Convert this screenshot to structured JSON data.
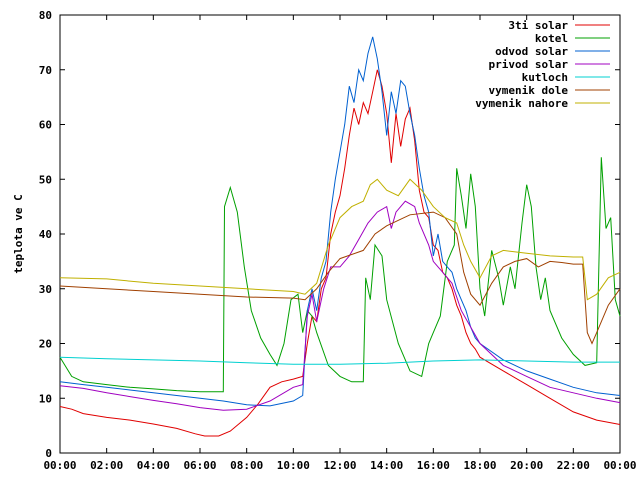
{
  "chart_data": {
    "type": "line",
    "title": "",
    "xlabel": "",
    "ylabel": "teplota ve C",
    "xlim": [
      0,
      24
    ],
    "ylim": [
      0,
      80
    ],
    "grid": false,
    "legend_position": "top-right",
    "x_ticks": [
      "00:00",
      "02:00",
      "04:00",
      "06:00",
      "08:00",
      "10:00",
      "12:00",
      "14:00",
      "16:00",
      "18:00",
      "20:00",
      "22:00",
      "00:00"
    ],
    "y_ticks": [
      "0",
      "10",
      "20",
      "30",
      "40",
      "50",
      "60",
      "70",
      "80"
    ],
    "series": [
      {
        "name": "3ti solar",
        "color": "#e00000",
        "points": [
          [
            0,
            8.5
          ],
          [
            0.5,
            8
          ],
          [
            1,
            7.2
          ],
          [
            2,
            6.5
          ],
          [
            3,
            6
          ],
          [
            4,
            5.3
          ],
          [
            5,
            4.5
          ],
          [
            5.8,
            3.5
          ],
          [
            6.2,
            3.1
          ],
          [
            6.8,
            3.1
          ],
          [
            7.3,
            4
          ],
          [
            8,
            6.5
          ],
          [
            8.5,
            9
          ],
          [
            9,
            12
          ],
          [
            9.5,
            13
          ],
          [
            10,
            13.5
          ],
          [
            10.4,
            14
          ],
          [
            10.6,
            20
          ],
          [
            10.8,
            25
          ],
          [
            11,
            24
          ],
          [
            11.2,
            30
          ],
          [
            11.4,
            32
          ],
          [
            11.6,
            40
          ],
          [
            11.8,
            44
          ],
          [
            12,
            47
          ],
          [
            12.2,
            52
          ],
          [
            12.4,
            58
          ],
          [
            12.6,
            63
          ],
          [
            12.8,
            60
          ],
          [
            13,
            64
          ],
          [
            13.2,
            62
          ],
          [
            13.4,
            66
          ],
          [
            13.6,
            70
          ],
          [
            13.8,
            67
          ],
          [
            14,
            62
          ],
          [
            14.2,
            53
          ],
          [
            14.4,
            62
          ],
          [
            14.6,
            56
          ],
          [
            14.8,
            61
          ],
          [
            15,
            63
          ],
          [
            15.2,
            57
          ],
          [
            15.4,
            48
          ],
          [
            15.6,
            44
          ],
          [
            15.8,
            43
          ],
          [
            16,
            38
          ],
          [
            16.2,
            37
          ],
          [
            16.4,
            33
          ],
          [
            16.6,
            32
          ],
          [
            16.8,
            30
          ],
          [
            17,
            27
          ],
          [
            17.2,
            25
          ],
          [
            17.4,
            22
          ],
          [
            17.6,
            20
          ],
          [
            17.8,
            19
          ],
          [
            18,
            17.5
          ],
          [
            19,
            15
          ],
          [
            20,
            12.5
          ],
          [
            21,
            10
          ],
          [
            22,
            7.5
          ],
          [
            23,
            6
          ],
          [
            24,
            5.2
          ]
        ]
      },
      {
        "name": "kotel",
        "color": "#00a000",
        "points": [
          [
            0,
            17.5
          ],
          [
            0.5,
            14
          ],
          [
            1,
            13
          ],
          [
            2,
            12.5
          ],
          [
            3,
            12
          ],
          [
            4,
            11.7
          ],
          [
            5,
            11.4
          ],
          [
            6,
            11.2
          ],
          [
            7,
            11.2
          ],
          [
            7.05,
            45
          ],
          [
            7.3,
            48.5
          ],
          [
            7.6,
            44
          ],
          [
            7.9,
            34
          ],
          [
            8.2,
            26
          ],
          [
            8.6,
            21
          ],
          [
            9,
            18
          ],
          [
            9.3,
            16
          ],
          [
            9.6,
            20
          ],
          [
            9.9,
            28
          ],
          [
            10.2,
            29
          ],
          [
            10.4,
            22
          ],
          [
            10.6,
            26
          ],
          [
            10.8,
            25
          ],
          [
            11,
            22
          ],
          [
            11.5,
            16
          ],
          [
            12,
            14
          ],
          [
            12.5,
            13
          ],
          [
            13,
            13
          ],
          [
            13.1,
            32
          ],
          [
            13.3,
            28
          ],
          [
            13.5,
            38
          ],
          [
            13.8,
            36
          ],
          [
            14,
            28
          ],
          [
            14.5,
            20
          ],
          [
            15,
            15
          ],
          [
            15.5,
            14
          ],
          [
            15.8,
            20
          ],
          [
            16,
            22
          ],
          [
            16.3,
            25
          ],
          [
            16.6,
            35
          ],
          [
            16.9,
            38
          ],
          [
            17,
            52
          ],
          [
            17.2,
            47
          ],
          [
            17.4,
            41
          ],
          [
            17.6,
            51
          ],
          [
            17.8,
            45
          ],
          [
            18,
            30
          ],
          [
            18.2,
            25
          ],
          [
            18.5,
            37
          ],
          [
            18.8,
            32
          ],
          [
            19,
            27
          ],
          [
            19.3,
            34
          ],
          [
            19.5,
            30
          ],
          [
            19.8,
            42
          ],
          [
            20,
            49
          ],
          [
            20.2,
            45
          ],
          [
            20.4,
            34
          ],
          [
            20.6,
            28
          ],
          [
            20.8,
            32
          ],
          [
            21,
            26
          ],
          [
            21.5,
            21
          ],
          [
            22,
            18
          ],
          [
            22.5,
            16
          ],
          [
            23,
            16.5
          ],
          [
            23.2,
            54
          ],
          [
            23.4,
            41
          ],
          [
            23.6,
            43
          ],
          [
            23.8,
            28
          ],
          [
            24,
            25
          ]
        ]
      },
      {
        "name": "odvod solar",
        "color": "#0060d0",
        "points": [
          [
            0,
            13
          ],
          [
            1,
            12.5
          ],
          [
            2,
            12
          ],
          [
            3,
            11.5
          ],
          [
            4,
            11
          ],
          [
            5,
            10.5
          ],
          [
            6,
            10
          ],
          [
            7,
            9.5
          ],
          [
            8,
            8.8
          ],
          [
            9,
            8.6
          ],
          [
            10,
            9.5
          ],
          [
            10.4,
            10.5
          ],
          [
            10.6,
            26
          ],
          [
            10.8,
            30
          ],
          [
            11,
            26
          ],
          [
            11.2,
            32
          ],
          [
            11.4,
            35
          ],
          [
            11.6,
            44
          ],
          [
            11.8,
            50
          ],
          [
            12,
            55
          ],
          [
            12.2,
            60
          ],
          [
            12.4,
            67
          ],
          [
            12.6,
            64
          ],
          [
            12.8,
            70
          ],
          [
            13,
            68
          ],
          [
            13.2,
            73
          ],
          [
            13.4,
            76
          ],
          [
            13.6,
            72
          ],
          [
            13.8,
            66
          ],
          [
            14,
            58
          ],
          [
            14.2,
            66
          ],
          [
            14.4,
            62
          ],
          [
            14.6,
            68
          ],
          [
            14.8,
            67
          ],
          [
            15,
            62
          ],
          [
            15.2,
            58
          ],
          [
            15.4,
            52
          ],
          [
            15.6,
            47
          ],
          [
            15.8,
            44
          ],
          [
            16,
            36
          ],
          [
            16.2,
            40
          ],
          [
            16.4,
            35
          ],
          [
            16.6,
            34
          ],
          [
            16.8,
            33
          ],
          [
            17,
            30
          ],
          [
            17.2,
            28
          ],
          [
            17.4,
            26
          ],
          [
            17.6,
            23
          ],
          [
            17.8,
            21
          ],
          [
            18,
            20
          ],
          [
            19,
            17
          ],
          [
            20,
            15
          ],
          [
            21,
            13.5
          ],
          [
            22,
            12
          ],
          [
            23,
            11
          ],
          [
            24,
            10.5
          ]
        ]
      },
      {
        "name": "privod solar",
        "color": "#a000c0",
        "points": [
          [
            0,
            12.3
          ],
          [
            1,
            11.8
          ],
          [
            2,
            11
          ],
          [
            3,
            10.3
          ],
          [
            4,
            9.6
          ],
          [
            5,
            9
          ],
          [
            6,
            8.3
          ],
          [
            7,
            7.8
          ],
          [
            8,
            8
          ],
          [
            9,
            9.5
          ],
          [
            10,
            12
          ],
          [
            10.4,
            12.5
          ],
          [
            10.6,
            25
          ],
          [
            10.8,
            29
          ],
          [
            11,
            24
          ],
          [
            11.3,
            30
          ],
          [
            11.6,
            34
          ],
          [
            12,
            34
          ],
          [
            12.4,
            36
          ],
          [
            12.8,
            39
          ],
          [
            13.2,
            42
          ],
          [
            13.6,
            44
          ],
          [
            14,
            45
          ],
          [
            14.2,
            41
          ],
          [
            14.4,
            44
          ],
          [
            14.8,
            46
          ],
          [
            15.2,
            45
          ],
          [
            15.4,
            42
          ],
          [
            15.8,
            38
          ],
          [
            16,
            35
          ],
          [
            16.4,
            33
          ],
          [
            16.8,
            31
          ],
          [
            17.2,
            26
          ],
          [
            17.6,
            23
          ],
          [
            18,
            20
          ],
          [
            19,
            16
          ],
          [
            20,
            14
          ],
          [
            21,
            12
          ],
          [
            22,
            11
          ],
          [
            23,
            10
          ],
          [
            24,
            9.2
          ]
        ]
      },
      {
        "name": "kutloch",
        "color": "#00d0d0",
        "points": [
          [
            0,
            17.5
          ],
          [
            2,
            17.2
          ],
          [
            4,
            17
          ],
          [
            6,
            16.8
          ],
          [
            8,
            16.5
          ],
          [
            10,
            16.2
          ],
          [
            12,
            16.2
          ],
          [
            14,
            16.4
          ],
          [
            16,
            16.8
          ],
          [
            18,
            17
          ],
          [
            20,
            16.8
          ],
          [
            22,
            16.6
          ],
          [
            24,
            16.6
          ]
        ]
      },
      {
        "name": "vymenik dole",
        "color": "#a04000",
        "points": [
          [
            0,
            30.5
          ],
          [
            2,
            30
          ],
          [
            4,
            29.5
          ],
          [
            6,
            29
          ],
          [
            8,
            28.5
          ],
          [
            10,
            28.3
          ],
          [
            10.5,
            28
          ],
          [
            11,
            30
          ],
          [
            11.5,
            33
          ],
          [
            12,
            35.5
          ],
          [
            13,
            37
          ],
          [
            13.5,
            40
          ],
          [
            14,
            41.5
          ],
          [
            15,
            43.5
          ],
          [
            16,
            44
          ],
          [
            16.5,
            43
          ],
          [
            17,
            40
          ],
          [
            17.3,
            33
          ],
          [
            17.6,
            29
          ],
          [
            18,
            27
          ],
          [
            18.5,
            31
          ],
          [
            19,
            34
          ],
          [
            19.5,
            35
          ],
          [
            20,
            35.5
          ],
          [
            20.5,
            34
          ],
          [
            21,
            35
          ],
          [
            21.5,
            34.8
          ],
          [
            22,
            34.5
          ],
          [
            22.4,
            34.5
          ],
          [
            22.6,
            22
          ],
          [
            22.8,
            20
          ],
          [
            23,
            22
          ],
          [
            23.5,
            27
          ],
          [
            24,
            30
          ]
        ]
      },
      {
        "name": "vymenik nahore",
        "color": "#c0b000",
        "points": [
          [
            0,
            32
          ],
          [
            2,
            31.8
          ],
          [
            4,
            31
          ],
          [
            6,
            30.5
          ],
          [
            8,
            30
          ],
          [
            10,
            29.5
          ],
          [
            10.5,
            29
          ],
          [
            11,
            31
          ],
          [
            11.5,
            38
          ],
          [
            12,
            43
          ],
          [
            12.5,
            45
          ],
          [
            13,
            46
          ],
          [
            13.3,
            49
          ],
          [
            13.6,
            50
          ],
          [
            14,
            48
          ],
          [
            14.5,
            47
          ],
          [
            15,
            50
          ],
          [
            15.5,
            48
          ],
          [
            16,
            45
          ],
          [
            16.5,
            43
          ],
          [
            17,
            42
          ],
          [
            17.3,
            38
          ],
          [
            17.6,
            35
          ],
          [
            18,
            32
          ],
          [
            18.5,
            36
          ],
          [
            19,
            37
          ],
          [
            20,
            36.5
          ],
          [
            21,
            36
          ],
          [
            22,
            35.8
          ],
          [
            22.4,
            35.8
          ],
          [
            22.6,
            28
          ],
          [
            23,
            29
          ],
          [
            23.5,
            32
          ],
          [
            24,
            33
          ]
        ]
      }
    ]
  }
}
